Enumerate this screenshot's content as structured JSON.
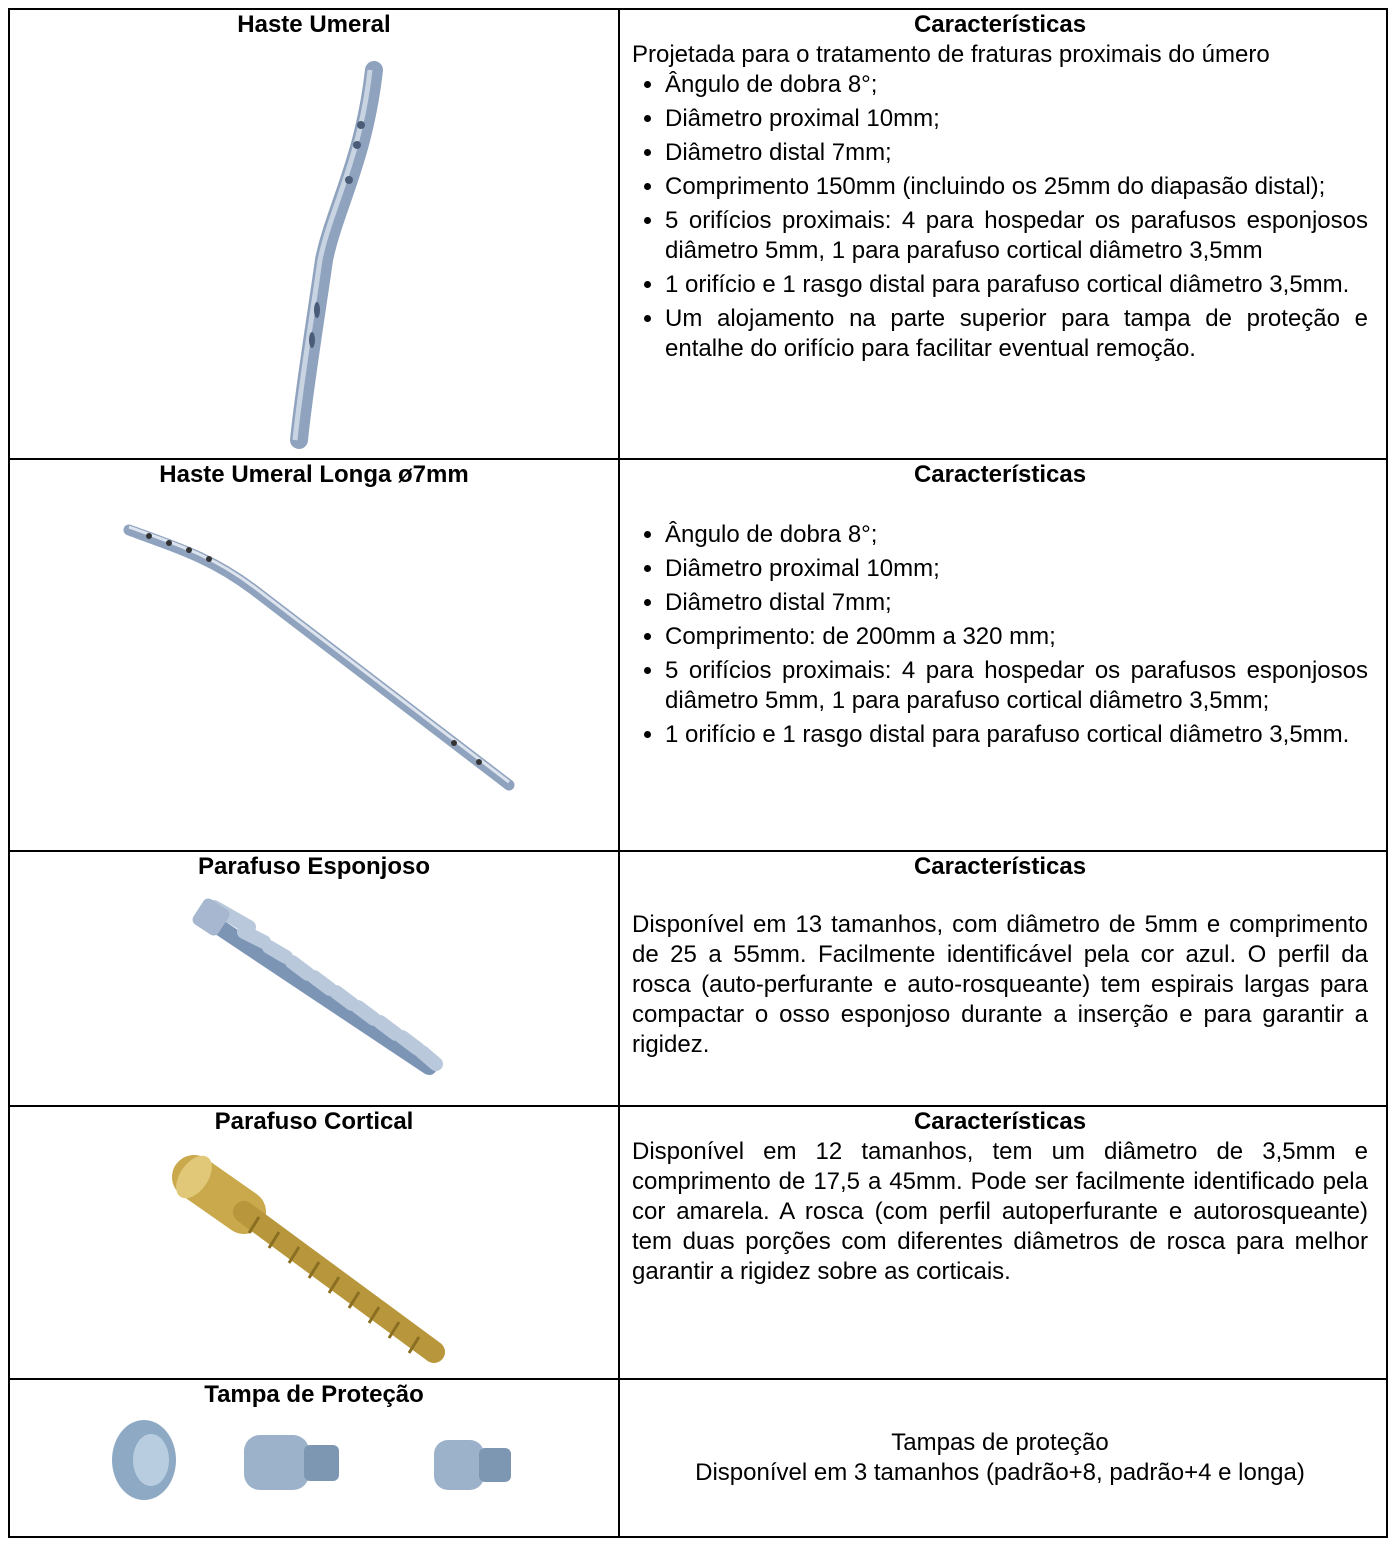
{
  "table": {
    "rows": [
      {
        "left_title": "Haste Umeral",
        "right_title": "Características",
        "intro": "Projetada para o tratamento de fraturas proximais do úmero",
        "bullets": [
          "Ângulo de dobra 8°;",
          "Diâmetro proximal 10mm;",
          "Diâmetro distal 7mm;",
          "Comprimento 150mm (incluindo os 25mm do diapasão distal);",
          "5 orifícios proximais: 4 para hospedar os parafusos esponjosos diâmetro 5mm, 1 para parafuso cortical diâmetro 3,5mm",
          "1 orifício e 1 rasgo distal para parafuso cortical diâmetro 3,5mm.",
          "Um alojamento na parte superior para tampa de proteção e entalhe do orifício  para facilitar eventual remoção."
        ]
      },
      {
        "left_title": "Haste Umeral Longa ø7mm",
        "right_title": "Características",
        "bullets": [
          "Ângulo de dobra 8°;",
          "Diâmetro proximal 10mm;",
          "Diâmetro distal 7mm;",
          "Comprimento: de 200mm a 320 mm;",
          "5 orifícios proximais: 4 para hospedar os parafusos esponjosos diâmetro 5mm, 1 para parafuso cortical diâmetro 3,5mm;",
          "1 orifício e 1 rasgo distal para parafuso cortical diâmetro 3,5mm."
        ]
      },
      {
        "left_title": "Parafuso Esponjoso",
        "right_title": "Características",
        "text": "Disponível em 13 tamanhos, com diâmetro de 5mm e comprimento de 25 a 55mm. Facilmente identificável pela cor azul. O perfil da rosca (auto-perfurante e auto-rosqueante) tem espirais largas para compactar o osso esponjoso durante a inserção e para garantir a rigidez."
      },
      {
        "left_title": "Parafuso Cortical",
        "right_title": "Características",
        "text": "Disponível em 12 tamanhos, tem um diâmetro de 3,5mm e comprimento de 17,5 a 45mm. Pode ser facilmente identificado pela cor amarela. A rosca (com perfil autoperfurante e autorosqueante) tem duas porções com diferentes diâmetros de rosca para melhor garantir a rigidez sobre as corticais."
      },
      {
        "left_title": "Tampa de Proteção",
        "lines": [
          "Tampas de proteção",
          "Disponível em 3 tamanhos (padrão+8, padrão+4 e longa)"
        ]
      }
    ]
  }
}
